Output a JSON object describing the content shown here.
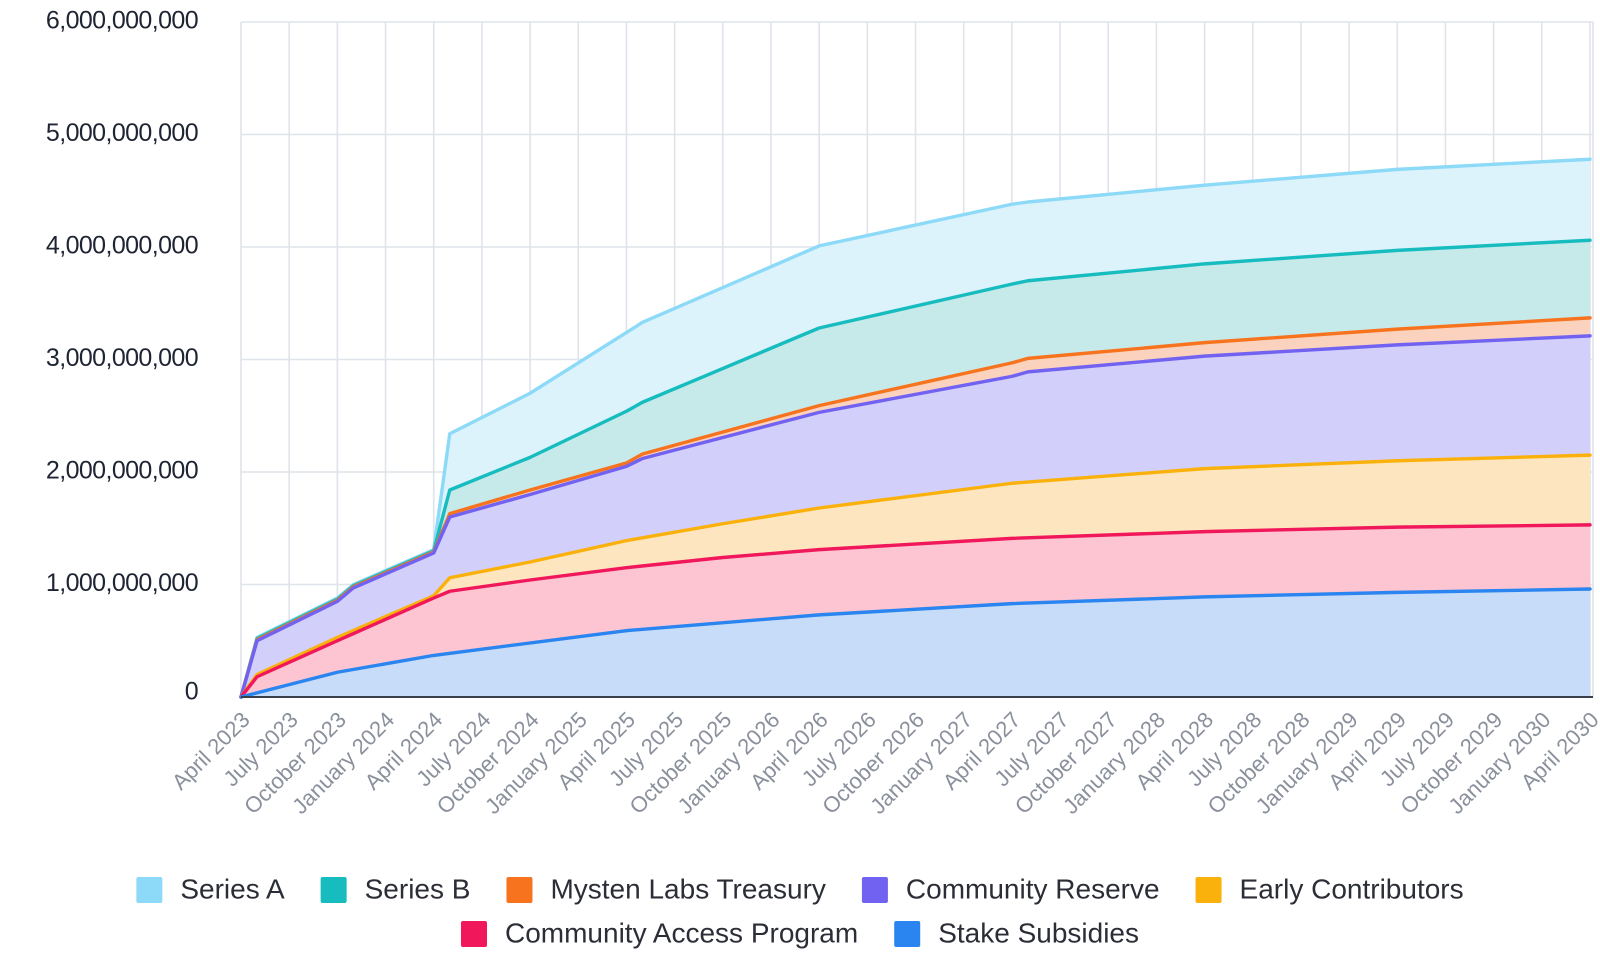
{
  "chart_data": {
    "type": "area",
    "stacked": true,
    "title": "",
    "xlabel": "",
    "ylabel": "",
    "ylim": [
      0,
      6000000000
    ],
    "yticks": [
      0,
      1000000000,
      2000000000,
      3000000000,
      4000000000,
      5000000000,
      6000000000
    ],
    "ytick_labels": [
      "0",
      "1,000,000,000",
      "2,000,000,000",
      "3,000,000,000",
      "4,000,000,000",
      "5,000,000,000",
      "6,000,000,000"
    ],
    "xtick_labels": [
      "April 2023",
      "July 2023",
      "October 2023",
      "January 2024",
      "April 2024",
      "July 2024",
      "October 2024",
      "January 2025",
      "April 2025",
      "July 2025",
      "October 2025",
      "January 2026",
      "April 2026",
      "July 2026",
      "October 2026",
      "January 2027",
      "April 2027",
      "July 2027",
      "October 2027",
      "January 2028",
      "April 2028",
      "July 2028",
      "October 2028",
      "January 2029",
      "April 2029",
      "July 2029",
      "October 2029",
      "January 2030",
      "April 2030"
    ],
    "grid": true,
    "legend_position": "bottom",
    "x_unit": "months since April 2023",
    "series": [
      {
        "name": "Stake Subsidies",
        "color": "#2a85f0",
        "fill": "#c7dcf8",
        "cumulative_points": [
          [
            0,
            0
          ],
          [
            6,
            220000000
          ],
          [
            12,
            370000000
          ],
          [
            24,
            590000000
          ],
          [
            36,
            730000000
          ],
          [
            48,
            830000000
          ],
          [
            60,
            890000000
          ],
          [
            72,
            930000000
          ],
          [
            84,
            960000000
          ]
        ]
      },
      {
        "name": "Community Access Program",
        "color": "#f0185a",
        "fill": "#fdc5d2",
        "cumulative_points": [
          [
            0,
            0
          ],
          [
            1,
            180000000
          ],
          [
            6,
            500000000
          ],
          [
            12,
            880000000
          ],
          [
            13,
            940000000
          ],
          [
            18,
            1040000000
          ],
          [
            24,
            1150000000
          ],
          [
            30,
            1240000000
          ],
          [
            36,
            1310000000
          ],
          [
            48,
            1410000000
          ],
          [
            60,
            1470000000
          ],
          [
            72,
            1510000000
          ],
          [
            84,
            1530000000
          ]
        ]
      },
      {
        "name": "Early Contributors",
        "color": "#fbb10b",
        "fill": "#fde6bf",
        "cumulative_points": [
          [
            0,
            0
          ],
          [
            1,
            200000000
          ],
          [
            6,
            530000000
          ],
          [
            12,
            900000000
          ],
          [
            13,
            1060000000
          ],
          [
            18,
            1200000000
          ],
          [
            24,
            1390000000
          ],
          [
            30,
            1540000000
          ],
          [
            36,
            1680000000
          ],
          [
            48,
            1900000000
          ],
          [
            60,
            2030000000
          ],
          [
            72,
            2100000000
          ],
          [
            84,
            2150000000
          ]
        ]
      },
      {
        "name": "Community Reserve",
        "color": "#7162f1",
        "fill": "#d3cffb",
        "cumulative_points": [
          [
            0,
            0
          ],
          [
            1,
            500000000
          ],
          [
            6,
            850000000
          ],
          [
            7,
            970000000
          ],
          [
            12,
            1280000000
          ],
          [
            13,
            1600000000
          ],
          [
            18,
            1800000000
          ],
          [
            24,
            2050000000
          ],
          [
            25,
            2120000000
          ],
          [
            36,
            2530000000
          ],
          [
            48,
            2850000000
          ],
          [
            49,
            2890000000
          ],
          [
            60,
            3030000000
          ],
          [
            72,
            3130000000
          ],
          [
            84,
            3210000000
          ]
        ]
      },
      {
        "name": "Mysten Labs Treasury",
        "color": "#f7731e",
        "fill": "#fad2be",
        "cumulative_points": [
          [
            0,
            0
          ],
          [
            1,
            510000000
          ],
          [
            6,
            860000000
          ],
          [
            7,
            980000000
          ],
          [
            12,
            1290000000
          ],
          [
            13,
            1630000000
          ],
          [
            18,
            1840000000
          ],
          [
            24,
            2080000000
          ],
          [
            25,
            2160000000
          ],
          [
            36,
            2590000000
          ],
          [
            48,
            2970000000
          ],
          [
            49,
            3010000000
          ],
          [
            60,
            3150000000
          ],
          [
            72,
            3270000000
          ],
          [
            84,
            3370000000
          ]
        ]
      },
      {
        "name": "Series B",
        "color": "#17bcbf",
        "fill": "#c6eaea",
        "cumulative_points": [
          [
            0,
            0
          ],
          [
            1,
            520000000
          ],
          [
            6,
            870000000
          ],
          [
            7,
            990000000
          ],
          [
            12,
            1300000000
          ],
          [
            13,
            1840000000
          ],
          [
            18,
            2130000000
          ],
          [
            24,
            2540000000
          ],
          [
            25,
            2620000000
          ],
          [
            36,
            3280000000
          ],
          [
            48,
            3670000000
          ],
          [
            49,
            3700000000
          ],
          [
            60,
            3850000000
          ],
          [
            72,
            3970000000
          ],
          [
            84,
            4060000000
          ]
        ]
      },
      {
        "name": "Series A",
        "color": "#8cdaf7",
        "fill": "#dcf3fc",
        "cumulative_points": [
          [
            0,
            0
          ],
          [
            1,
            530000000
          ],
          [
            6,
            880000000
          ],
          [
            7,
            1000000000
          ],
          [
            12,
            1310000000
          ],
          [
            13,
            2340000000
          ],
          [
            18,
            2700000000
          ],
          [
            25,
            3330000000
          ],
          [
            36,
            4010000000
          ],
          [
            48,
            4380000000
          ],
          [
            49,
            4400000000
          ],
          [
            60,
            4550000000
          ],
          [
            72,
            4690000000
          ],
          [
            84,
            4780000000
          ]
        ]
      }
    ]
  },
  "legend": {
    "row1": [
      "Series A",
      "Series B",
      "Mysten Labs Treasury",
      "Community Reserve",
      "Early Contributors"
    ],
    "row2": [
      "Community Access Program",
      "Stake Subsidies"
    ]
  }
}
